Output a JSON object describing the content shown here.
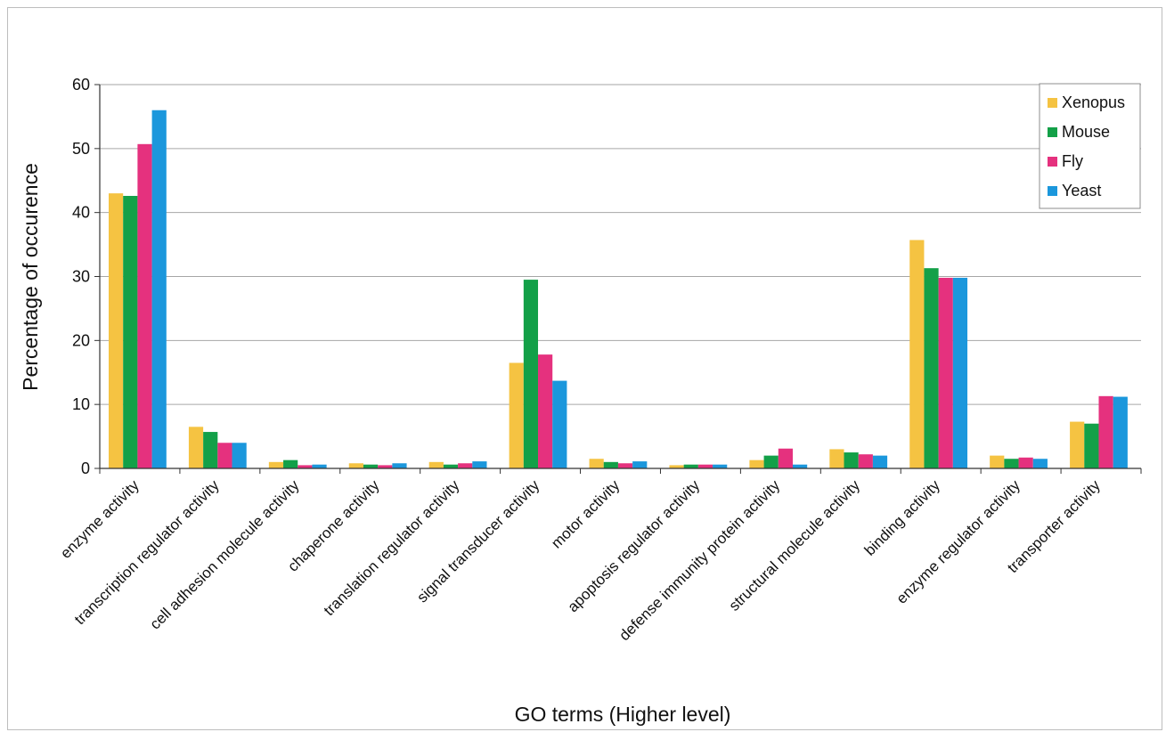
{
  "chart_data": {
    "type": "bar",
    "title": "",
    "xlabel": "GO terms  (Higher level)",
    "ylabel": "Percentage of occurence",
    "ylim": [
      0,
      60
    ],
    "yticks": [
      0,
      10,
      20,
      30,
      40,
      50,
      60
    ],
    "grid": true,
    "legend_position": "top-right",
    "categories": [
      "enzyme activity",
      "transcription regulator activity",
      "cell adhesion molecule activity",
      "chaperone activity",
      "translation regulator activity",
      "signal transducer activity",
      "motor activity",
      "apoptosis regulator activity",
      "defense immunity protein activity",
      "structural molecule activity",
      "binding activity",
      "enzyme regulator activity",
      "transporter activity"
    ],
    "series": [
      {
        "name": "Xenopus",
        "color": "#f5c342",
        "values": [
          43.0,
          6.5,
          1.0,
          0.8,
          1.0,
          16.5,
          1.5,
          0.5,
          1.3,
          3.0,
          35.7,
          2.0,
          7.3
        ]
      },
      {
        "name": "Mouse",
        "color": "#13a048",
        "values": [
          42.6,
          5.7,
          1.3,
          0.6,
          0.6,
          29.5,
          1.0,
          0.6,
          2.0,
          2.5,
          31.3,
          1.5,
          7.0
        ]
      },
      {
        "name": "Fly",
        "color": "#e5317e",
        "values": [
          50.7,
          4.0,
          0.5,
          0.5,
          0.8,
          17.8,
          0.8,
          0.6,
          3.1,
          2.2,
          29.8,
          1.7,
          11.3
        ]
      },
      {
        "name": "Yeast",
        "color": "#1b97dc",
        "values": [
          56.0,
          4.0,
          0.6,
          0.8,
          1.1,
          13.7,
          1.1,
          0.6,
          0.6,
          2.0,
          29.8,
          1.5,
          11.2
        ]
      }
    ]
  }
}
